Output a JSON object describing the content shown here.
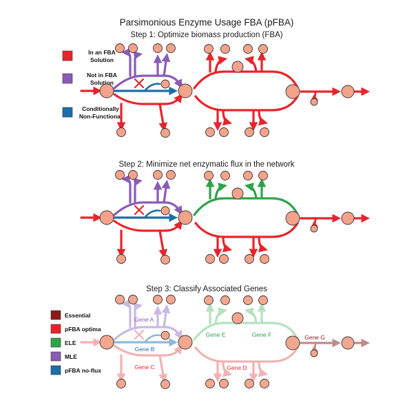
{
  "title": "Parsimonious Enzyme Usage FBA (pFBA)",
  "steps": [
    {
      "label": "Step 1: Optimize biomass production (FBA)"
    },
    {
      "label": "Step 2: Minimize net enzymatic flux in the network"
    },
    {
      "label": "Step 3: Classify Associated Genes"
    }
  ],
  "legend_top": [
    {
      "lines": [
        "In an FBA",
        "Solution"
      ],
      "color": "#e8242b"
    },
    {
      "lines": [
        "Not in FBA",
        "Solution"
      ],
      "color": "#8a5bb7"
    },
    {
      "lines": [
        "Conditionally",
        "Non-Functional"
      ],
      "color": "#1c6fa8"
    }
  ],
  "legend_bottom": [
    {
      "label": "Essential",
      "color": "#8b1a1a"
    },
    {
      "label": "pFBA optima",
      "color": "#e8242b"
    },
    {
      "label": "ELE",
      "color": "#2ea44a"
    },
    {
      "label": "MLE",
      "color": "#8a5bb7"
    },
    {
      "label": "pFBA no-flux",
      "color": "#1c6fa8"
    }
  ],
  "genes": {
    "a": "Gene A",
    "b": "Gene B",
    "c": "Gene C",
    "d": "Gene D",
    "e": "Gene E",
    "f": "Gene F",
    "g": "Gene G"
  },
  "colors": {
    "red": "#e8242b",
    "purple": "#8a5bb7",
    "blue": "#1c6fa8",
    "green": "#2ea44a",
    "node": "#f4a38a",
    "fade_purple": "#c9b9e2",
    "fade_blue": "#8fb9d9",
    "fade_red": "#f3b2b2",
    "fade_green": "#b5e2be",
    "fade_dark": "#c08a8a",
    "fade_node": "#f3a78f"
  }
}
